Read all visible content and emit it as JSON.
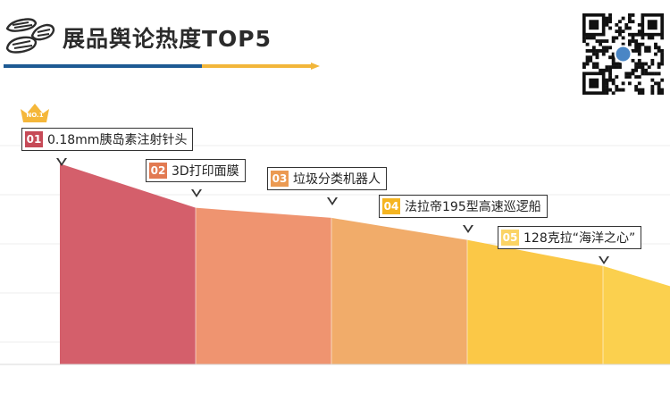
{
  "header": {
    "title": "展品舆论热度TOP5"
  },
  "crown_badge": "NO.1",
  "chart_data": {
    "type": "area",
    "title": "展品舆论热度TOP5",
    "categories": [
      "0.18mm胰岛素注射针头",
      "3D打印面膜",
      "垃圾分类机器人",
      "法拉帝195型高速巡逻船",
      "128克拉“海洋之心”"
    ],
    "ranks": [
      "01",
      "02",
      "03",
      "04",
      "05"
    ],
    "values": [
      100,
      78,
      73,
      62,
      49
    ],
    "tail_value": 39,
    "ylim": [
      0,
      105
    ],
    "grid": true,
    "colors": [
      "#d45f6b",
      "#ef9470",
      "#f1ac6a",
      "#fbc847",
      "#fbd04e"
    ],
    "rank_colors": [
      "#c64a57",
      "#e27a52",
      "#eb9a52",
      "#f5b521",
      "#fbd465"
    ]
  }
}
